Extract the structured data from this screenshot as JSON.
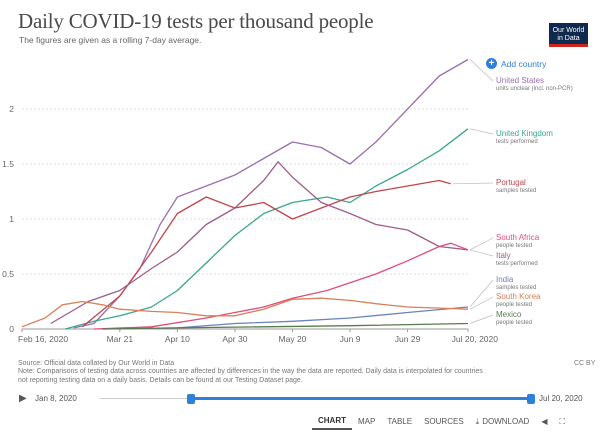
{
  "header": {
    "title": "Daily COVID-19 tests per thousand people",
    "subtitle": "The figures are given as a rolling 7-day average.",
    "logo_line1": "Our World",
    "logo_line2": "in Data"
  },
  "add_country_label": "Add country",
  "chart_data": {
    "type": "line",
    "title": "Daily COVID-19 tests per thousand people",
    "subtitle": "The figures are given as a rolling 7-day average.",
    "ylim": [
      0,
      2.4
    ],
    "y_ticks": [
      0,
      0.5,
      1,
      1.5,
      2
    ],
    "y_tick_labels": [
      "0",
      "0.5",
      "1",
      "1.5",
      "2"
    ],
    "x_ticks": [
      "2020-02-16",
      "2020-03-21",
      "2020-04-10",
      "2020-04-30",
      "2020-05-20",
      "2020-06-09",
      "2020-06-29",
      "2020-07-20"
    ],
    "x_tick_labels": [
      "Feb 16, 2020",
      "Mar 21",
      "Apr 10",
      "Apr 30",
      "May 20",
      "Jun 9",
      "Jun 29",
      "Jul 20, 2020"
    ],
    "grid": "horizontal dotted",
    "legend": "right",
    "series": [
      {
        "name": "United States",
        "note": "units unclear (incl. non-PCR)",
        "color": "#9a6fb0",
        "points": [
          [
            "2020-03-05",
            0.01
          ],
          [
            "2020-03-12",
            0.05
          ],
          [
            "2020-03-21",
            0.3
          ],
          [
            "2020-03-28",
            0.55
          ],
          [
            "2020-04-04",
            0.95
          ],
          [
            "2020-04-10",
            1.2
          ],
          [
            "2020-04-20",
            1.3
          ],
          [
            "2020-04-30",
            1.4
          ],
          [
            "2020-05-10",
            1.55
          ],
          [
            "2020-05-20",
            1.7
          ],
          [
            "2020-05-30",
            1.65
          ],
          [
            "2020-06-09",
            1.5
          ],
          [
            "2020-06-18",
            1.7
          ],
          [
            "2020-06-29",
            2.0
          ],
          [
            "2020-07-10",
            2.3
          ],
          [
            "2020-07-20",
            2.45
          ]
        ]
      },
      {
        "name": "United Kingdom",
        "note": "tests performed",
        "color": "#3aa692",
        "points": [
          [
            "2020-03-02",
            0.0
          ],
          [
            "2020-03-12",
            0.07
          ],
          [
            "2020-03-21",
            0.12
          ],
          [
            "2020-04-01",
            0.2
          ],
          [
            "2020-04-10",
            0.35
          ],
          [
            "2020-04-20",
            0.6
          ],
          [
            "2020-04-30",
            0.85
          ],
          [
            "2020-05-10",
            1.05
          ],
          [
            "2020-05-20",
            1.15
          ],
          [
            "2020-06-01",
            1.2
          ],
          [
            "2020-06-09",
            1.15
          ],
          [
            "2020-06-18",
            1.3
          ],
          [
            "2020-06-29",
            1.45
          ],
          [
            "2020-07-10",
            1.62
          ],
          [
            "2020-07-20",
            1.82
          ]
        ]
      },
      {
        "name": "Portugal",
        "note": "samples tested",
        "color": "#c1454d",
        "points": [
          [
            "2020-03-08",
            0.02
          ],
          [
            "2020-03-21",
            0.3
          ],
          [
            "2020-04-01",
            0.7
          ],
          [
            "2020-04-10",
            1.05
          ],
          [
            "2020-04-20",
            1.2
          ],
          [
            "2020-04-30",
            1.1
          ],
          [
            "2020-05-10",
            1.15
          ],
          [
            "2020-05-20",
            1.0
          ],
          [
            "2020-05-30",
            1.1
          ],
          [
            "2020-06-09",
            1.2
          ],
          [
            "2020-06-18",
            1.25
          ],
          [
            "2020-06-29",
            1.3
          ],
          [
            "2020-07-10",
            1.35
          ],
          [
            "2020-07-14",
            1.32
          ]
        ]
      },
      {
        "name": "Italy",
        "note": "tests performed",
        "color": "#a05c8a",
        "points": [
          [
            "2020-02-26",
            0.05
          ],
          [
            "2020-03-10",
            0.25
          ],
          [
            "2020-03-21",
            0.35
          ],
          [
            "2020-04-01",
            0.55
          ],
          [
            "2020-04-10",
            0.7
          ],
          [
            "2020-04-20",
            0.95
          ],
          [
            "2020-04-30",
            1.1
          ],
          [
            "2020-05-10",
            1.35
          ],
          [
            "2020-05-15",
            1.52
          ],
          [
            "2020-05-20",
            1.38
          ],
          [
            "2020-05-30",
            1.15
          ],
          [
            "2020-06-09",
            1.05
          ],
          [
            "2020-06-18",
            0.95
          ],
          [
            "2020-06-29",
            0.9
          ],
          [
            "2020-07-10",
            0.75
          ],
          [
            "2020-07-20",
            0.72
          ]
        ]
      },
      {
        "name": "South Africa",
        "note": "people tested",
        "color": "#e24c7a",
        "points": [
          [
            "2020-03-12",
            0.0
          ],
          [
            "2020-04-01",
            0.02
          ],
          [
            "2020-04-20",
            0.1
          ],
          [
            "2020-04-30",
            0.15
          ],
          [
            "2020-05-10",
            0.2
          ],
          [
            "2020-05-20",
            0.28
          ],
          [
            "2020-06-01",
            0.35
          ],
          [
            "2020-06-09",
            0.42
          ],
          [
            "2020-06-18",
            0.5
          ],
          [
            "2020-06-29",
            0.62
          ],
          [
            "2020-07-10",
            0.75
          ],
          [
            "2020-07-14",
            0.78
          ],
          [
            "2020-07-20",
            0.72
          ]
        ]
      },
      {
        "name": "India",
        "note": "samples tested",
        "color": "#6b84b8",
        "points": [
          [
            "2020-03-15",
            0.0
          ],
          [
            "2020-04-10",
            0.01
          ],
          [
            "2020-04-30",
            0.05
          ],
          [
            "2020-05-20",
            0.07
          ],
          [
            "2020-06-09",
            0.1
          ],
          [
            "2020-06-29",
            0.15
          ],
          [
            "2020-07-20",
            0.2
          ]
        ]
      },
      {
        "name": "South Korea",
        "note": "people tested",
        "color": "#d7805a",
        "points": [
          [
            "2020-02-16",
            0.02
          ],
          [
            "2020-02-24",
            0.1
          ],
          [
            "2020-03-01",
            0.22
          ],
          [
            "2020-03-08",
            0.25
          ],
          [
            "2020-03-15",
            0.22
          ],
          [
            "2020-03-21",
            0.18
          ],
          [
            "2020-04-01",
            0.16
          ],
          [
            "2020-04-10",
            0.15
          ],
          [
            "2020-04-20",
            0.12
          ],
          [
            "2020-04-30",
            0.12
          ],
          [
            "2020-05-10",
            0.18
          ],
          [
            "2020-05-20",
            0.27
          ],
          [
            "2020-05-30",
            0.28
          ],
          [
            "2020-06-09",
            0.26
          ],
          [
            "2020-06-18",
            0.23
          ],
          [
            "2020-06-29",
            0.2
          ],
          [
            "2020-07-10",
            0.19
          ],
          [
            "2020-07-20",
            0.18
          ]
        ]
      },
      {
        "name": "Mexico",
        "note": "people tested",
        "color": "#5a7a4e",
        "points": [
          [
            "2020-03-15",
            0.0
          ],
          [
            "2020-04-10",
            0.01
          ],
          [
            "2020-05-10",
            0.02
          ],
          [
            "2020-06-09",
            0.03
          ],
          [
            "2020-07-20",
            0.05
          ]
        ]
      }
    ]
  },
  "footer": {
    "source": "Source: Official data collated by Our World in Data",
    "note_line1": "Note: Comparisons of testing data across countries are affected by differences in the way the data are reported. Daily data is interpolated for countries",
    "note_line2": "not reporting testing data on a daily basis. Details can be found at our Testing Dataset page.",
    "license": "CC BY"
  },
  "timeline": {
    "play_icon": "play-icon",
    "start_label": "Jan 8, 2020",
    "end_label": "Jul 20, 2020"
  },
  "tabs": [
    {
      "label": "CHART",
      "active": true
    },
    {
      "label": "MAP",
      "active": false
    },
    {
      "label": "TABLE",
      "active": false
    },
    {
      "label": "SOURCES",
      "active": false
    },
    {
      "label": "DOWNLOAD",
      "active": false
    }
  ],
  "icons": {
    "add": "plus-circle-icon",
    "download": "download-icon",
    "share": "share-icon",
    "fullscreen": "expand-icon"
  }
}
